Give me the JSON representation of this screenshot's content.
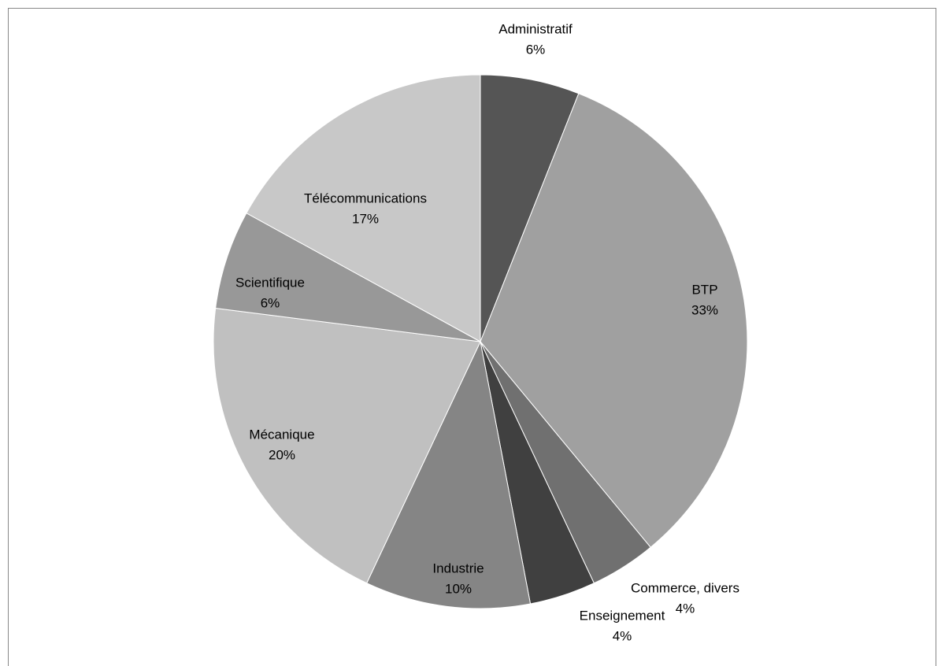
{
  "chart_data": {
    "type": "pie",
    "categories": [
      "Administratif",
      "BTP",
      "Commerce, divers",
      "Enseignement",
      "Industrie",
      "Mécanique",
      "Scientifique",
      "Télécommunications"
    ],
    "values": [
      6,
      33,
      4,
      4,
      10,
      20,
      6,
      17
    ],
    "value_labels": [
      "6%",
      "33%",
      "4%",
      "4%",
      "10%",
      "20%",
      "6%",
      "17%"
    ],
    "colors": [
      "#555555",
      "#a0a0a0",
      "#707070",
      "#404040",
      "#858585",
      "#c0c0c0",
      "#989898",
      "#c8c8c8"
    ]
  }
}
